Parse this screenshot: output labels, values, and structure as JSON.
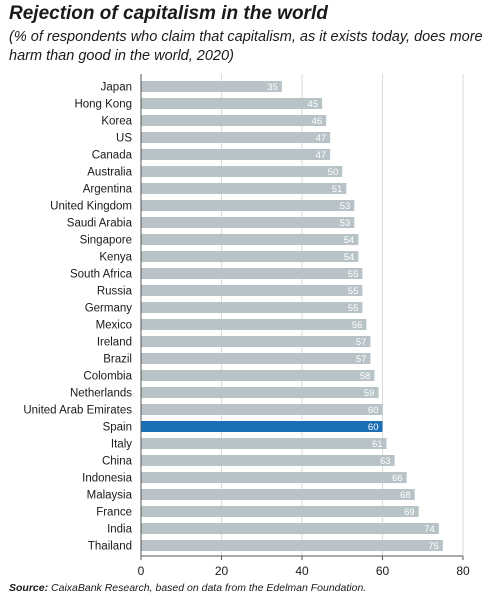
{
  "header": {
    "title": "Rejection of capitalism in the world",
    "subtitle": "(% of respondents who claim that capitalism, as it exists today, does more harm than good in the world, 2020)"
  },
  "footer": {
    "source_label": "Source:",
    "source_text": "CaixaBank Research, based on data from the Edelman Foundation."
  },
  "colors": {
    "bar": "#b7c3c7",
    "highlight": "#1b6fb5",
    "bar_label": "#ffffff",
    "grid": "#dadada",
    "axis": "#555555"
  },
  "chart_data": {
    "type": "bar",
    "orientation": "horizontal",
    "categories": [
      "Japan",
      "Hong Kong",
      "Korea",
      "US",
      "Canada",
      "Australia",
      "Argentina",
      "United Kingdom",
      "Saudi Arabia",
      "Singapore",
      "Kenya",
      "South Africa",
      "Russia",
      "Germany",
      "Mexico",
      "Ireland",
      "Brazil",
      "Colombia",
      "Netherlands",
      "United Arab Emirates",
      "Spain",
      "Italy",
      "China",
      "Indonesia",
      "Malaysia",
      "France",
      "India",
      "Thailand"
    ],
    "values": [
      35,
      45,
      46,
      47,
      47,
      50,
      51,
      53,
      53,
      54,
      54,
      55,
      55,
      55,
      56,
      57,
      57,
      58,
      59,
      60,
      60,
      61,
      63,
      66,
      68,
      69,
      74,
      75
    ],
    "highlight": "Spain",
    "xlim": [
      0,
      80
    ],
    "xticks": [
      0,
      20,
      40,
      60,
      80
    ],
    "grid": true,
    "data_labels": true
  }
}
